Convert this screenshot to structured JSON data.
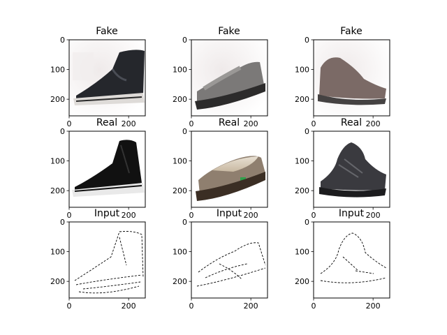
{
  "grid": {
    "rows": [
      {
        "title": "Fake",
        "panels": [
          {
            "image": "black-high-top-sneaker"
          },
          {
            "image": "grey-slip-on-loafer"
          },
          {
            "image": "grey-high-top-shoe"
          }
        ]
      },
      {
        "title": "Real",
        "panels": [
          {
            "image": "black-canvas-high-top-sneaker"
          },
          {
            "image": "brown-fleece-lined-loafer"
          },
          {
            "image": "black-basketball-sneaker"
          }
        ]
      },
      {
        "title": "Input",
        "panels": [
          {
            "image": "edge-sketch-high-top"
          },
          {
            "image": "edge-sketch-loafer"
          },
          {
            "image": "edge-sketch-sneaker"
          }
        ]
      }
    ],
    "axes": {
      "x_ticks": [
        "0",
        "200"
      ],
      "y_ticks": [
        "0",
        "100",
        "200"
      ]
    }
  }
}
